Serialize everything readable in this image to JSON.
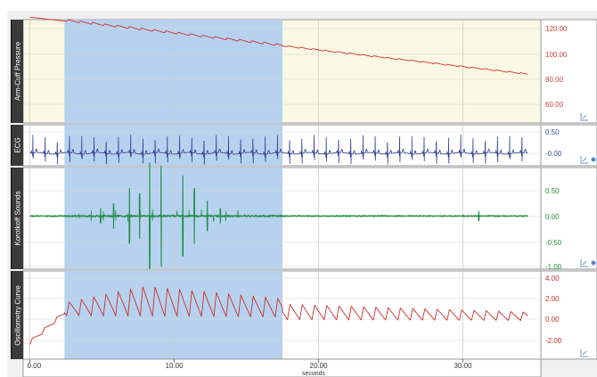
{
  "channels": [
    {
      "name": "Arm-Cuff Pressure",
      "ticks": [
        "120.00",
        "100.00",
        "80.00",
        "60.00"
      ],
      "tick_color": "#d04040",
      "trace_color": "#d03030",
      "background": "#fbf8e3"
    },
    {
      "name": "ECG",
      "ticks": [
        "0.50",
        "-0.00"
      ],
      "tick_color": "#3a4fa0",
      "trace_color": "#2e3b8c",
      "background": "#ffffff"
    },
    {
      "name": "Korotkoff Sounds",
      "ticks": [
        "0.50",
        "0.00",
        "-0.50",
        "-1.00"
      ],
      "tick_color": "#2a8a40",
      "trace_color": "#1f8a45",
      "background": "#ffffff"
    },
    {
      "name": "Oscillometry Curve",
      "ticks": [
        "4.00",
        "2.00",
        "0.00",
        "-2.00"
      ],
      "tick_color": "#c03030",
      "trace_color": "#c83030",
      "background": "#ffffff"
    }
  ],
  "x_axis": {
    "ticks": [
      "0.00",
      "10.00",
      "20.00",
      "30.00"
    ],
    "label": "seconds",
    "range": [
      0,
      34.5
    ]
  },
  "selection": {
    "start": 2.4,
    "end": 17.5,
    "color": "#b6d2ee"
  },
  "icons": [
    "autoscale-icon",
    "options-dot-icon"
  ]
}
